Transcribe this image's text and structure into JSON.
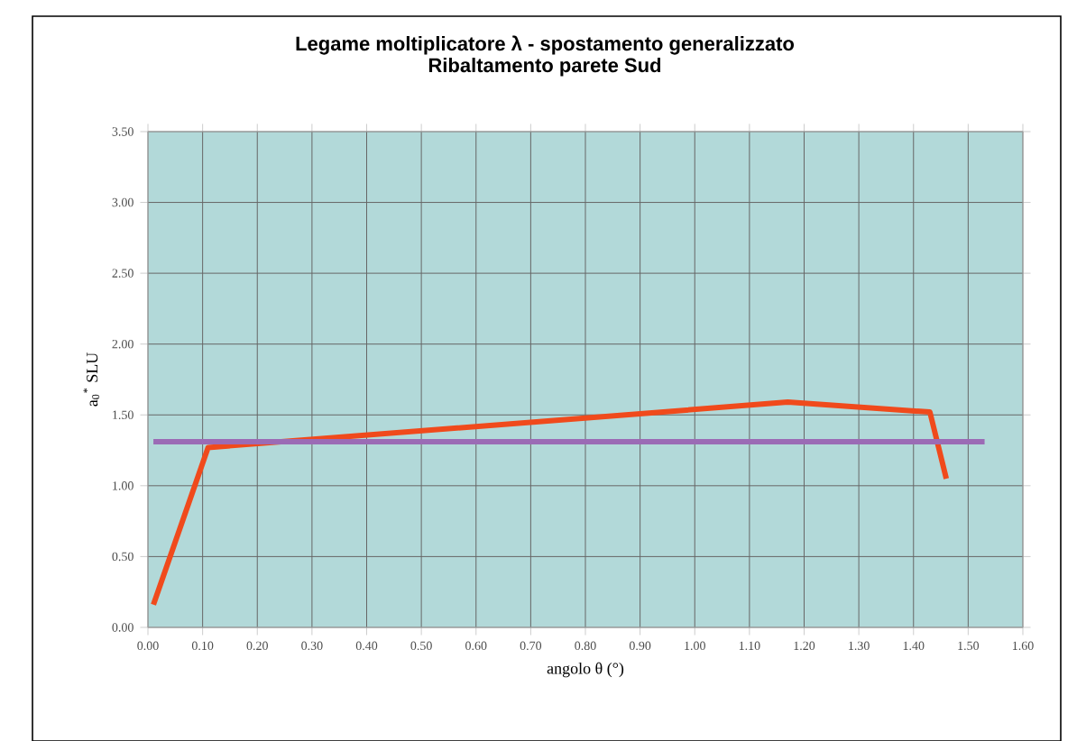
{
  "chart_data": {
    "type": "line",
    "title": "Legame moltiplicatore λ - spostamento generalizzato",
    "subtitle": "Ribaltamento parete Sud",
    "xlabel": "angolo θ (°)",
    "ylabel": "a$_{0}$$^{*}$ SLU",
    "series": [
      {
        "color": "#f04a1c",
        "x": [
          0.01,
          0.11,
          1.17,
          1.43,
          1.46
        ],
        "values": [
          0.16,
          1.27,
          1.59,
          1.52,
          1.05
        ]
      },
      {
        "color": "#9b6bb5",
        "x": [
          0.01,
          1.53
        ],
        "values": [
          1.31,
          1.31
        ]
      }
    ],
    "xlim": [
      0,
      1.6
    ],
    "ylim": [
      0,
      3.5
    ],
    "xticks": [
      {
        "value": 0,
        "label": "0.00"
      },
      {
        "value": 0.1,
        "label": "0.10"
      },
      {
        "value": 0.2,
        "label": "0.20"
      },
      {
        "value": 0.3,
        "label": "0.30"
      },
      {
        "value": 0.4,
        "label": "0.40"
      },
      {
        "value": 0.5,
        "label": "0.50"
      },
      {
        "value": 0.6,
        "label": "0.60"
      },
      {
        "value": 0.7,
        "label": "0.70"
      },
      {
        "value": 0.8,
        "label": "0.80"
      },
      {
        "value": 0.9,
        "label": "0.90"
      },
      {
        "value": 1.0,
        "label": "1.00"
      },
      {
        "value": 1.1,
        "label": "1.10"
      },
      {
        "value": 1.2,
        "label": "1.20"
      },
      {
        "value": 1.3,
        "label": "1.30"
      },
      {
        "value": 1.4,
        "label": "1.40"
      },
      {
        "value": 1.5,
        "label": "1.50"
      },
      {
        "value": 1.6,
        "label": "1.60"
      }
    ],
    "yticks": [
      {
        "value": 0,
        "label": "0.00"
      },
      {
        "value": 0.5,
        "label": "0.50"
      },
      {
        "value": 1.0,
        "label": "1.00"
      },
      {
        "value": 1.5,
        "label": "1.50"
      },
      {
        "value": 2.0,
        "label": "2.00"
      },
      {
        "value": 2.5,
        "label": "2.50"
      },
      {
        "value": 3.0,
        "label": "3.00"
      },
      {
        "value": 3.5,
        "label": "3.50"
      }
    ],
    "grid": true,
    "marker": "none",
    "line_style": "solid"
  }
}
